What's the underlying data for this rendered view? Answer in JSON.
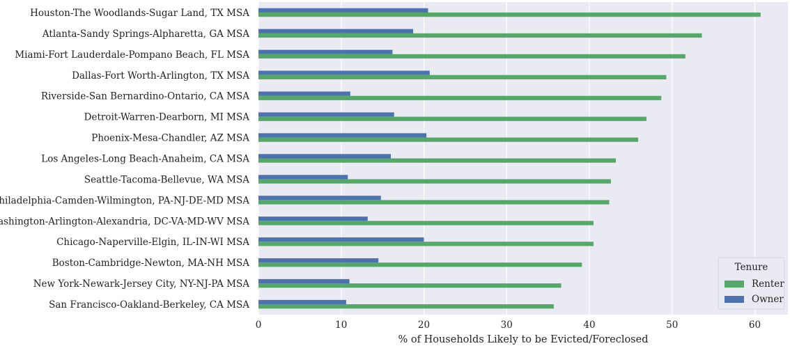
{
  "chart_data": {
    "type": "bar",
    "orientation": "horizontal",
    "categories": [
      "Houston-The Woodlands-Sugar Land, TX MSA",
      "Atlanta-Sandy Springs-Alpharetta, GA MSA",
      "Miami-Fort Lauderdale-Pompano Beach, FL MSA",
      "Dallas-Fort Worth-Arlington, TX MSA",
      "Riverside-San Bernardino-Ontario, CA MSA",
      "Detroit-Warren-Dearborn, MI MSA",
      "Phoenix-Mesa-Chandler, AZ MSA",
      "Los Angeles-Long Beach-Anaheim, CA MSA",
      "Seattle-Tacoma-Bellevue, WA MSA",
      "Philadelphia-Camden-Wilmington, PA-NJ-DE-MD MSA",
      "Washington-Arlington-Alexandria, DC-VA-MD-WV MSA",
      "Chicago-Naperville-Elgin, IL-IN-WI MSA",
      "Boston-Cambridge-Newton, MA-NH MSA",
      "New York-Newark-Jersey City, NY-NJ-PA MSA",
      "San Francisco-Oakland-Berkeley, CA MSA"
    ],
    "series": [
      {
        "name": "Renter",
        "color": "#55a868",
        "values": [
          60.7,
          53.6,
          51.6,
          49.3,
          48.7,
          46.9,
          45.9,
          43.2,
          42.6,
          42.4,
          40.5,
          40.5,
          39.1,
          36.6,
          35.7
        ]
      },
      {
        "name": "Owner",
        "color": "#4c72b0",
        "values": [
          20.5,
          18.7,
          16.2,
          20.7,
          11.1,
          16.4,
          20.3,
          16.0,
          10.8,
          14.8,
          13.2,
          20.0,
          14.5,
          11.0,
          10.6
        ]
      }
    ],
    "xlabel": "% of Households Likely to be Evicted/Foreclosed",
    "ylabel": "",
    "xlim": [
      0,
      64
    ],
    "xticks": [
      0,
      10,
      20,
      30,
      40,
      50,
      60
    ],
    "grid": true,
    "legend": {
      "title": "Tenure",
      "placement": "lower-right",
      "entries": [
        "Renter",
        "Owner"
      ]
    },
    "background_color": "#eaeaf2",
    "grid_color": "#ffffff"
  }
}
